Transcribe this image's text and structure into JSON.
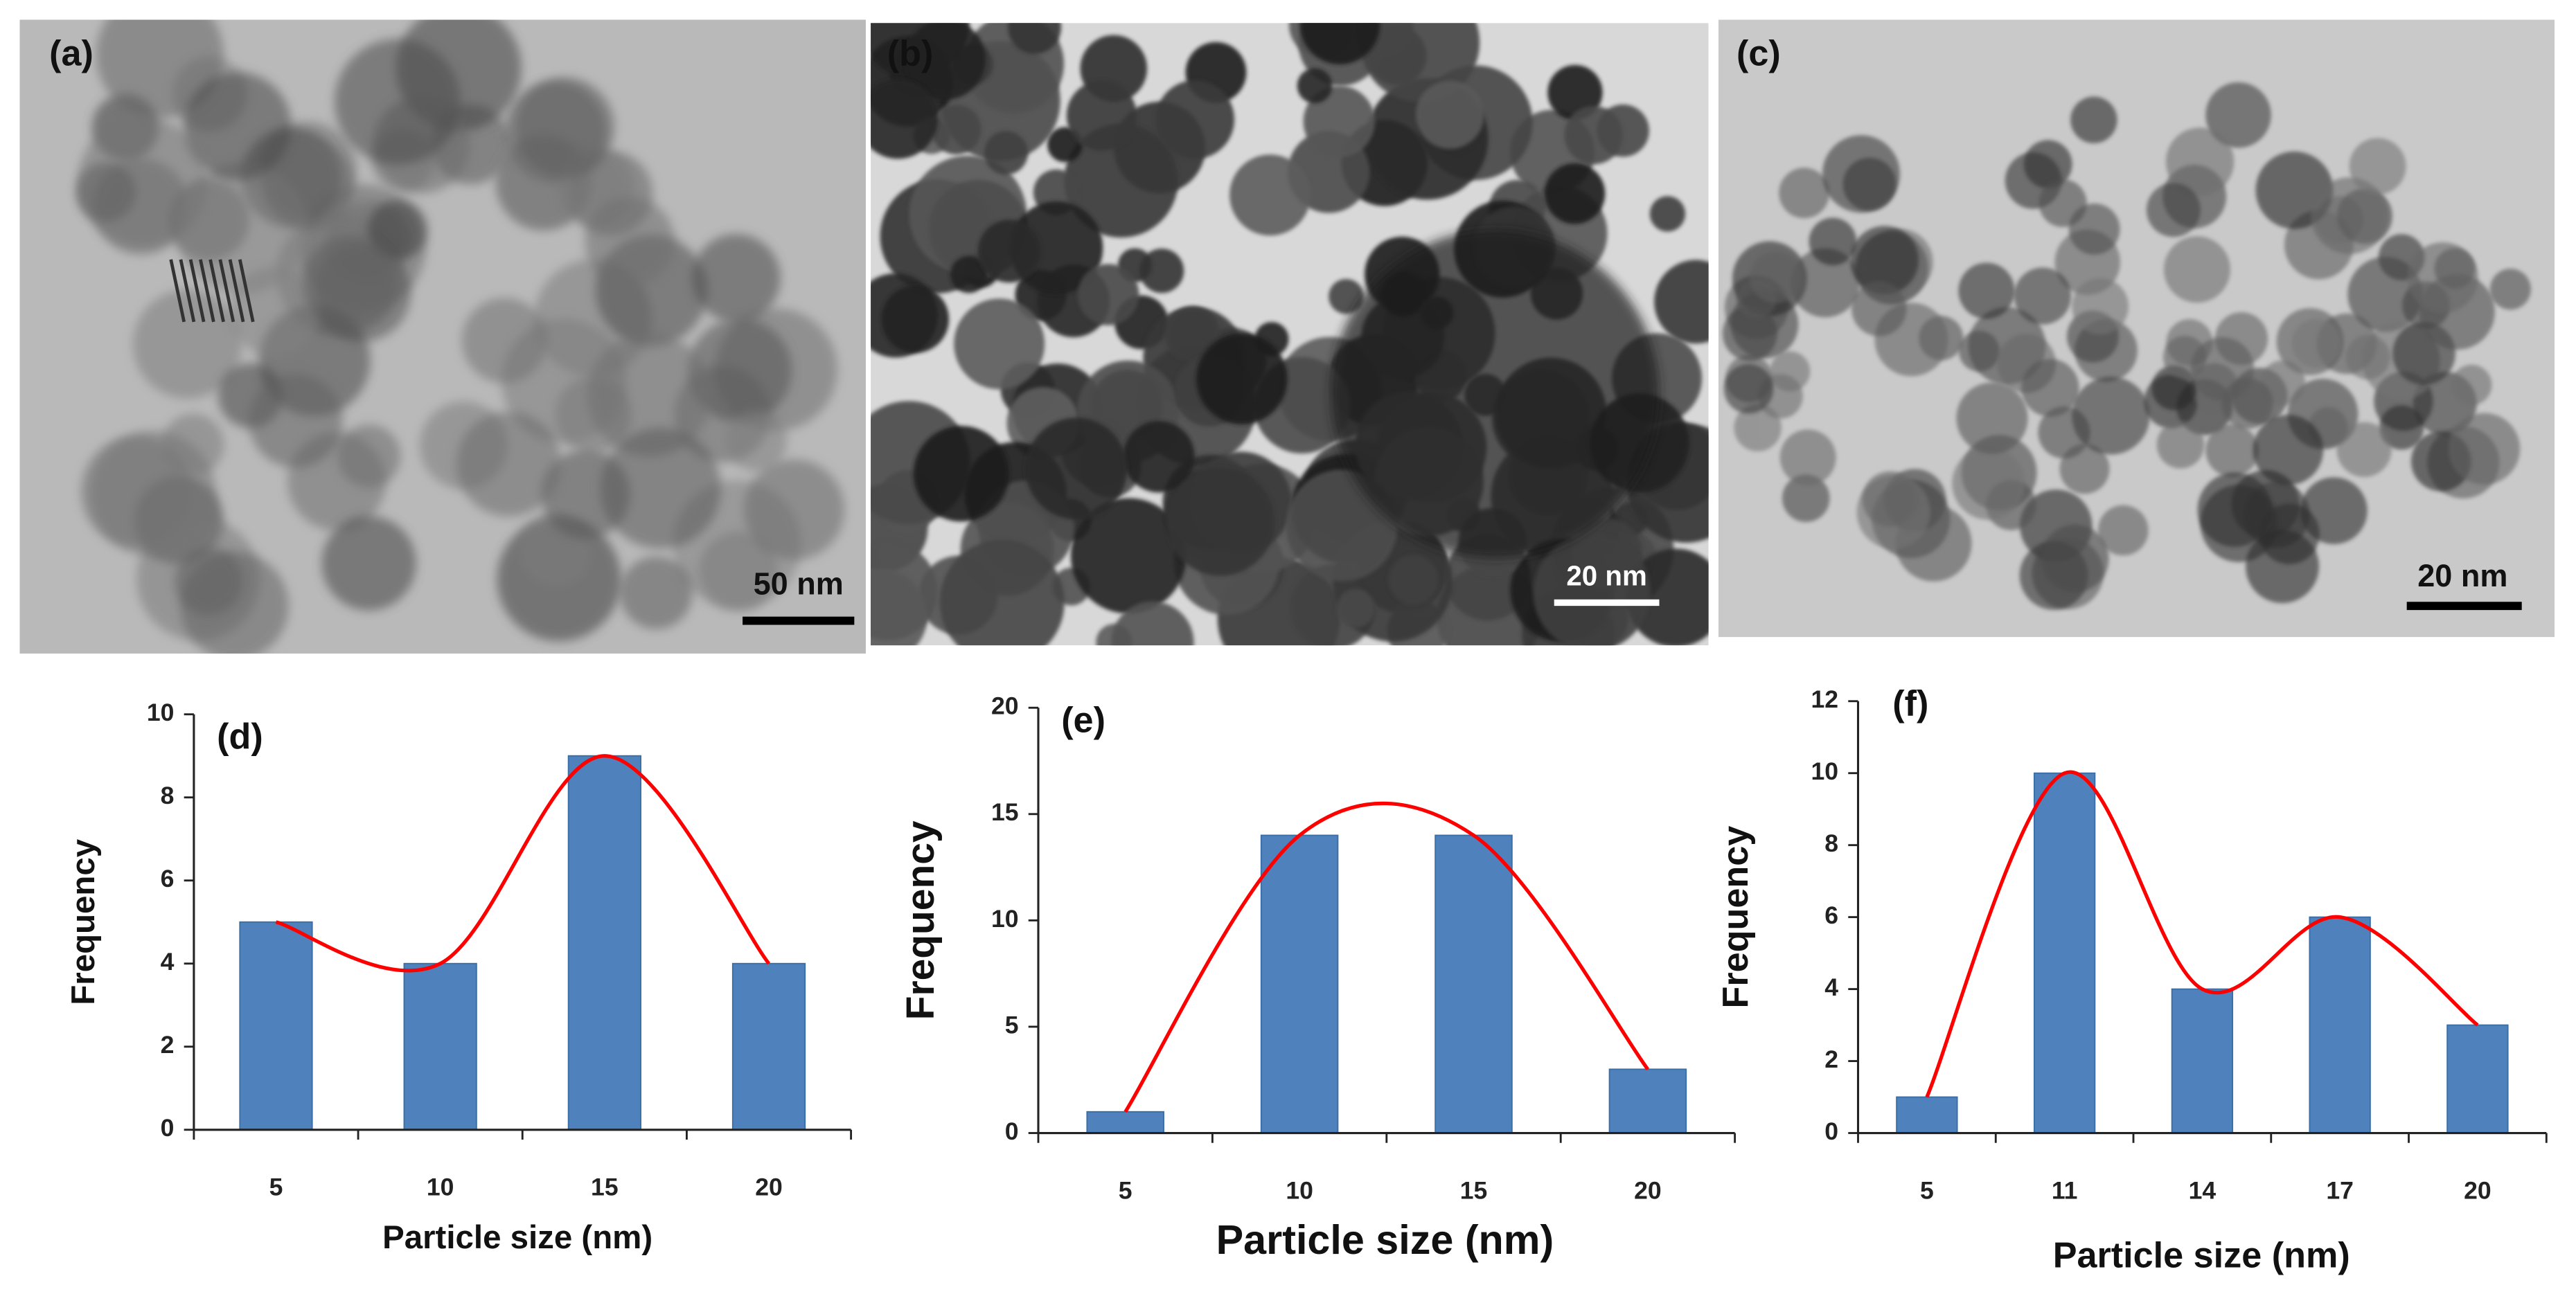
{
  "images": [
    {
      "label": "(a)",
      "scale_bar": "50 nm"
    },
    {
      "label": "(b)",
      "scale_bar": "20 nm"
    },
    {
      "label": "(c)",
      "scale_bar": "20 nm"
    }
  ],
  "chart_data": [
    {
      "type": "bar",
      "title": "(d)",
      "x_label": "Particle size (nm)",
      "y_label": "Frequency",
      "categories": [
        "5",
        "10",
        "15",
        "20"
      ],
      "values": [
        5,
        4,
        9,
        4
      ],
      "color": "#4f81bd",
      "curve_color": "#ff0000",
      "ylim": [
        0,
        10
      ],
      "yticks": [
        0,
        2,
        4,
        6,
        8,
        10
      ]
    },
    {
      "type": "bar",
      "title": "(e)",
      "x_label": "Particle size (nm)",
      "y_label": "Frequency",
      "categories": [
        "5",
        "10",
        "15",
        "20"
      ],
      "values": [
        1,
        14,
        14,
        3
      ],
      "color": "#4f81bd",
      "curve_color": "#ff0000",
      "ylim": [
        0,
        20
      ],
      "yticks": [
        0,
        5,
        10,
        15,
        20
      ]
    },
    {
      "type": "bar",
      "title": "(f)",
      "x_label": "Particle size (nm)",
      "y_label": "Frequency",
      "categories": [
        "5",
        "11",
        "14",
        "17",
        "20"
      ],
      "values": [
        1,
        10,
        4,
        6,
        3
      ],
      "color": "#4f81bd",
      "curve_color": "#ff0000",
      "ylim": [
        0,
        12
      ],
      "yticks": [
        0,
        2,
        4,
        6,
        8,
        10,
        12
      ]
    }
  ]
}
